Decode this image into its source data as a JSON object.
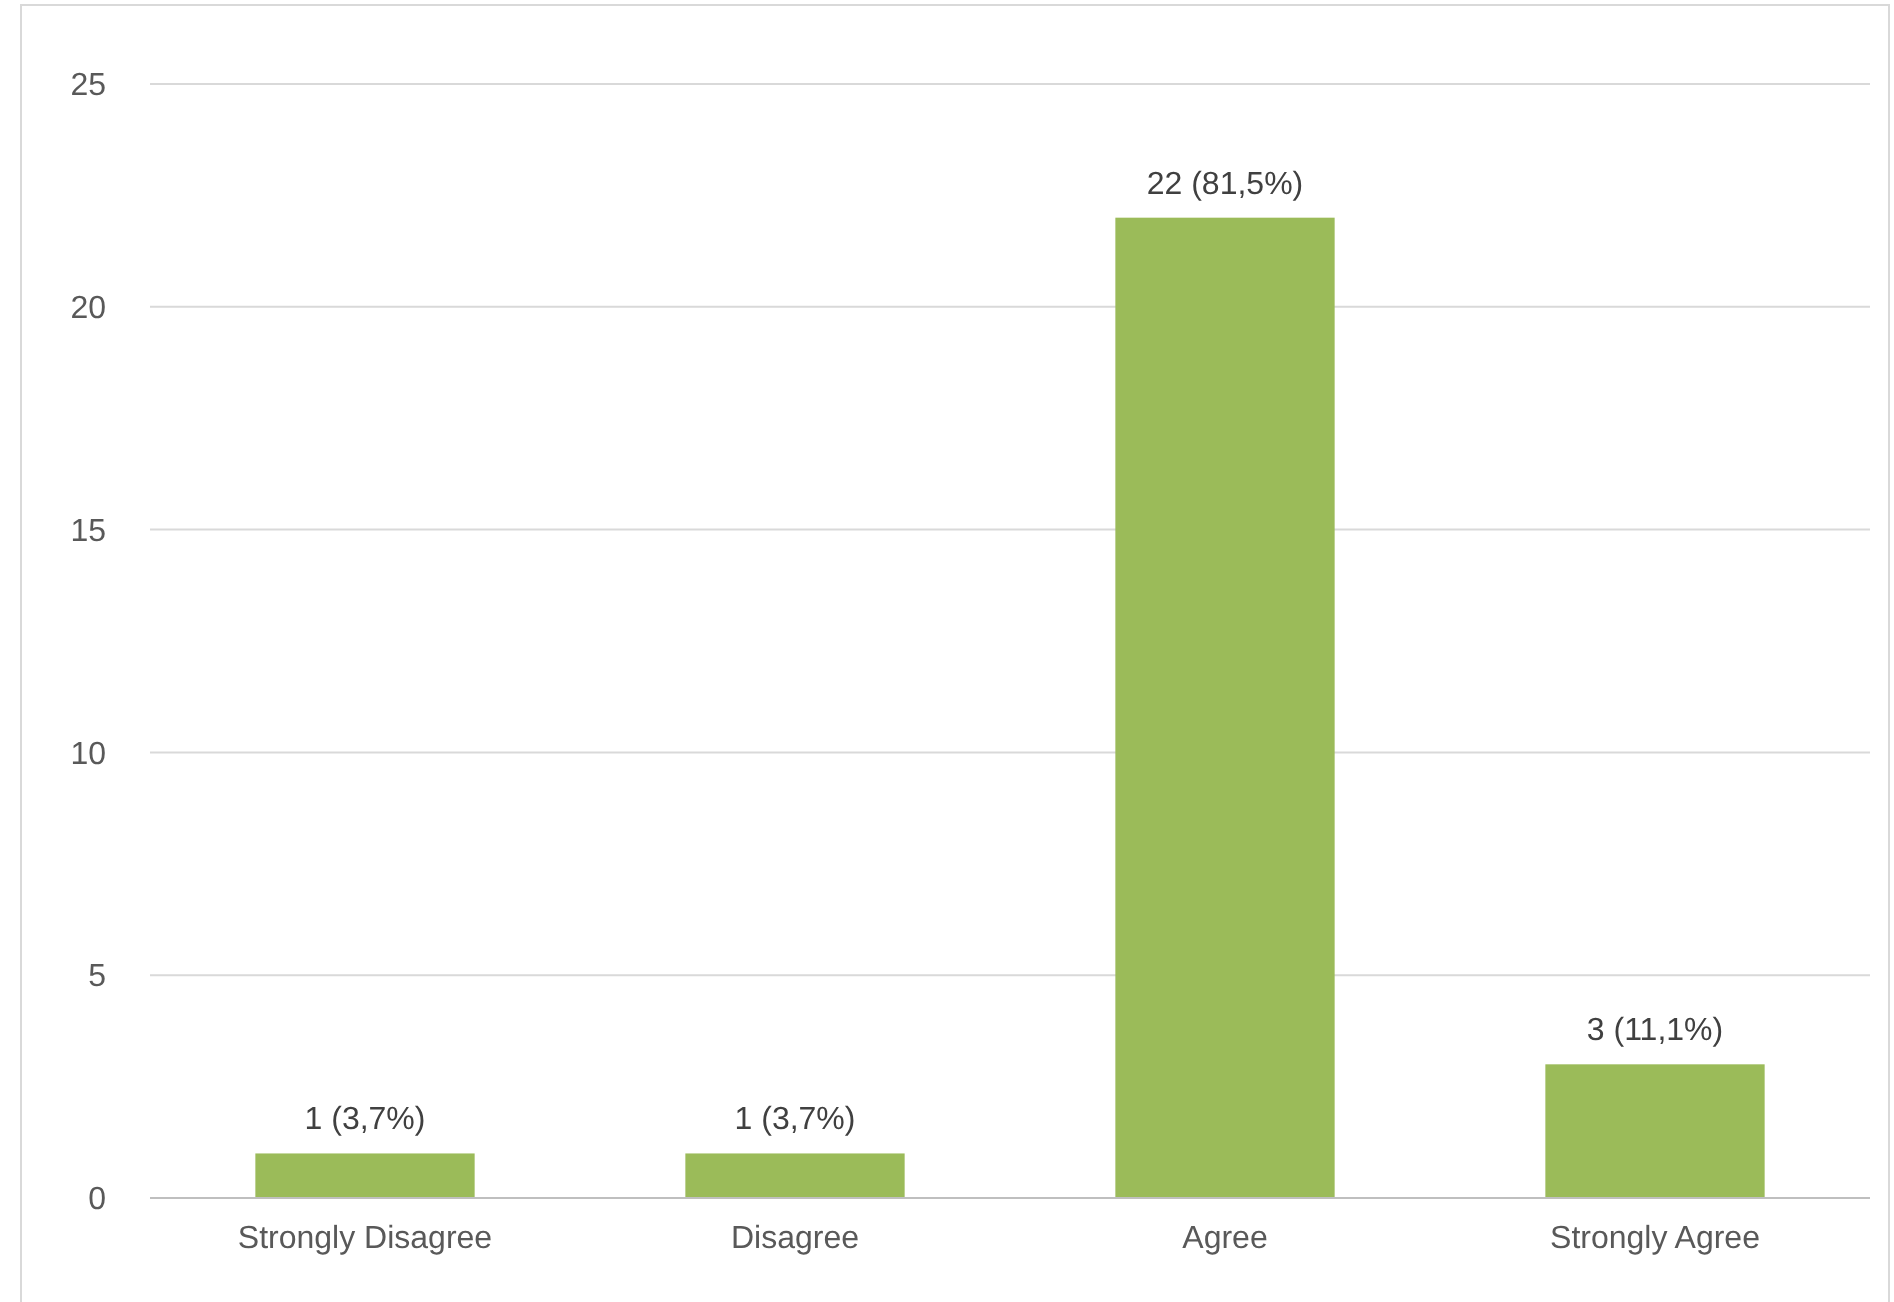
{
  "chart_data": {
    "type": "bar",
    "categories": [
      "Strongly Disagree",
      "Disagree",
      "Agree",
      "Strongly Agree"
    ],
    "values": [
      1,
      1,
      22,
      3
    ],
    "color": "#9bbb59",
    "value_labels": [
      "1 (3,7%)",
      "1 (3,7%)",
      "22 (81,5%)",
      "3 (11,1%)"
    ],
    "ylim": [
      0,
      25
    ],
    "yticks": [
      0,
      5,
      10,
      15,
      20,
      25
    ],
    "grid": "y"
  }
}
